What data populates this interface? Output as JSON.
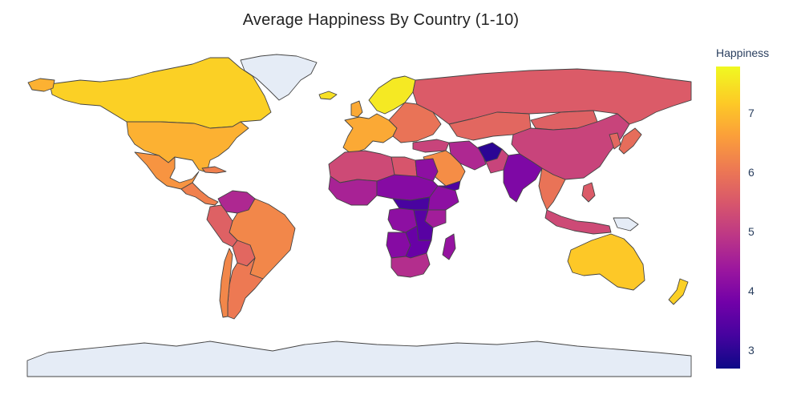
{
  "title": "Average Happiness By Country (1-10)",
  "colorbar": {
    "title": "Happiness",
    "range": [
      2.7,
      7.8
    ],
    "ticks": [
      "3",
      "4",
      "5",
      "6",
      "7"
    ],
    "colorscale": "Plasma"
  },
  "colors": {
    "ocean": "#ffffff",
    "no_data": "#e5ecf6",
    "border": "#444444"
  },
  "regions": [
    {
      "name": "Canada",
      "value": 7.3
    },
    {
      "name": "United States",
      "value": 6.9
    },
    {
      "name": "Mexico",
      "value": 6.5
    },
    {
      "name": "Central America",
      "value": 6.2
    },
    {
      "name": "Venezuela",
      "value": 4.7
    },
    {
      "name": "Brazil",
      "value": 6.3
    },
    {
      "name": "Peru",
      "value": 5.7
    },
    {
      "name": "Bolivia",
      "value": 5.8
    },
    {
      "name": "Argentina",
      "value": 6.1
    },
    {
      "name": "Chile",
      "value": 6.3
    },
    {
      "name": "Greenland",
      "value": null
    },
    {
      "name": "Iceland",
      "value": 7.5
    },
    {
      "name": "Nordic",
      "value": 7.6
    },
    {
      "name": "Western Europe",
      "value": 6.8
    },
    {
      "name": "Eastern Europe",
      "value": 6.0
    },
    {
      "name": "Russia",
      "value": 5.6
    },
    {
      "name": "Kazakhstan",
      "value": 5.8
    },
    {
      "name": "Mongolia",
      "value": 5.7
    },
    {
      "name": "China",
      "value": 5.2
    },
    {
      "name": "Japan",
      "value": 5.9
    },
    {
      "name": "Korea",
      "value": 5.8
    },
    {
      "name": "Turkey",
      "value": 5.2
    },
    {
      "name": "Iran",
      "value": 4.7
    },
    {
      "name": "Saudi Arabia",
      "value": 6.4
    },
    {
      "name": "Yemen",
      "value": 3.4
    },
    {
      "name": "Afghanistan",
      "value": 3.0
    },
    {
      "name": "Pakistan",
      "value": 5.2
    },
    {
      "name": "India",
      "value": 4.0
    },
    {
      "name": "Southeast Asia",
      "value": 6.0
    },
    {
      "name": "Indonesia",
      "value": 5.3
    },
    {
      "name": "Philippines",
      "value": 5.6
    },
    {
      "name": "Papua New Guinea",
      "value": null
    },
    {
      "name": "Australia",
      "value": 7.2
    },
    {
      "name": "New Zealand",
      "value": 7.3
    },
    {
      "name": "North Africa",
      "value": 5.3
    },
    {
      "name": "Libya",
      "value": 5.5
    },
    {
      "name": "Egypt",
      "value": 4.2
    },
    {
      "name": "West Africa",
      "value": 4.6
    },
    {
      "name": "Sahel",
      "value": 4.1
    },
    {
      "name": "Central Africa",
      "value": 3.3
    },
    {
      "name": "Ethiopia",
      "value": 4.2
    },
    {
      "name": "Kenya",
      "value": 4.5
    },
    {
      "name": "Tanzania",
      "value": 3.5
    },
    {
      "name": "Congo",
      "value": 4.2
    },
    {
      "name": "Angola",
      "value": 4.1
    },
    {
      "name": "Zambia",
      "value": 3.7
    },
    {
      "name": "Southern Africa",
      "value": 4.8
    },
    {
      "name": "Madagascar",
      "value": 4.3
    },
    {
      "name": "Antarctica",
      "value": null
    }
  ]
}
